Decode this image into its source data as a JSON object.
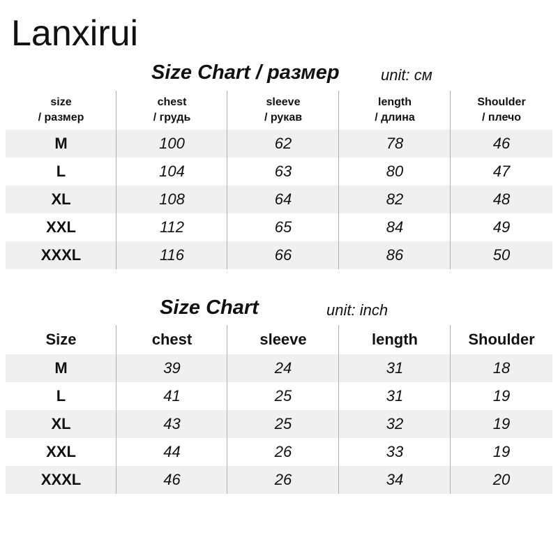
{
  "brand": "Lanxirui",
  "cm_table": {
    "title": "Size Chart / размер",
    "unit": "unit: см",
    "headers": [
      {
        "line1": "size",
        "line2": "/ размер"
      },
      {
        "line1": "chest",
        "line2": "/ грудь"
      },
      {
        "line1": "sleeve",
        "line2": "/ рукав"
      },
      {
        "line1": "length",
        "line2": "/ длина"
      },
      {
        "line1": "Shoulder",
        "line2": "/ плечо"
      }
    ],
    "rows": [
      [
        "M",
        "100",
        "62",
        "78",
        "46"
      ],
      [
        "L",
        "104",
        "63",
        "80",
        "47"
      ],
      [
        "XL",
        "108",
        "64",
        "82",
        "48"
      ],
      [
        "XXL",
        "112",
        "65",
        "84",
        "49"
      ],
      [
        "XXXL",
        "116",
        "66",
        "86",
        "50"
      ]
    ]
  },
  "inch_table": {
    "title": "Size Chart",
    "unit": "unit: inch",
    "headers": [
      "Size",
      "chest",
      "sleeve",
      "length",
      "Shoulder"
    ],
    "rows": [
      [
        "M",
        "39",
        "24",
        "31",
        "18"
      ],
      [
        "L",
        "41",
        "25",
        "31",
        "19"
      ],
      [
        "XL",
        "43",
        "25",
        "32",
        "19"
      ],
      [
        "XXL",
        "44",
        "26",
        "33",
        "19"
      ],
      [
        "XXXL",
        "46",
        "26",
        "34",
        "20"
      ]
    ]
  },
  "colors": {
    "text": "#111111",
    "row_shade": "#f0f0f0",
    "divider": "#b0b0b0",
    "background": "#ffffff"
  }
}
